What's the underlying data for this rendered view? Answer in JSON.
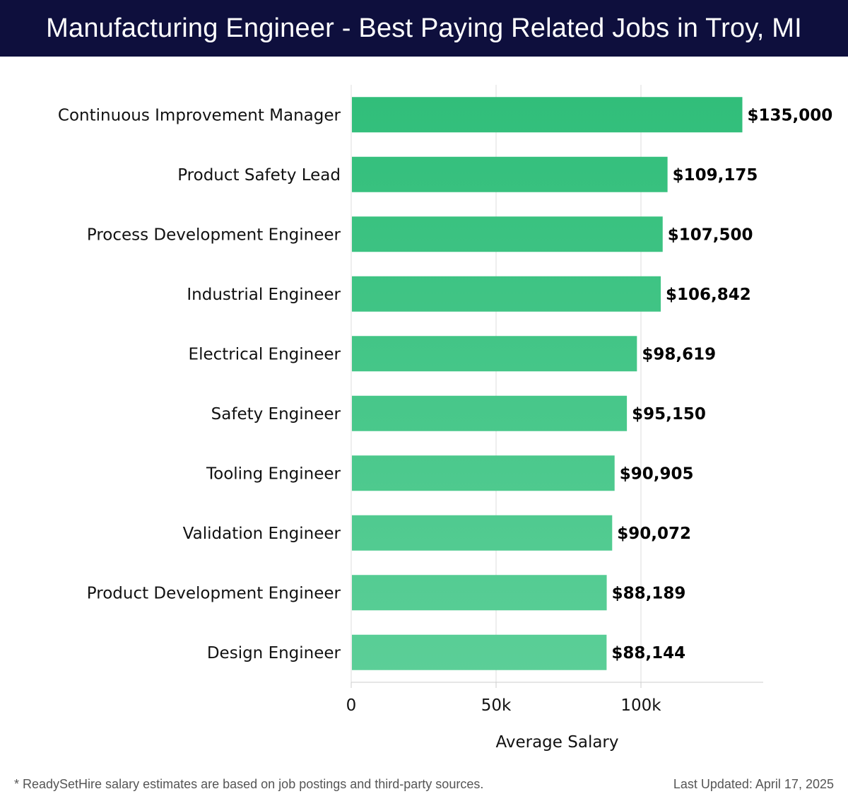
{
  "header": {
    "title": "Manufacturing Engineer - Best Paying Related Jobs in Troy, MI"
  },
  "colors": {
    "header_bg": "#0e0f3d",
    "bar_top": "#2ebd78",
    "bar_bottom": "#5ccf98",
    "grid": "#dddddd"
  },
  "chart_data": {
    "type": "bar",
    "orientation": "horizontal",
    "categories": [
      "Continuous Improvement Manager",
      "Product Safety Lead",
      "Process Development Engineer",
      "Industrial Engineer",
      "Electrical Engineer",
      "Safety Engineer",
      "Tooling Engineer",
      "Validation Engineer",
      "Product Development Engineer",
      "Design Engineer"
    ],
    "values": [
      135000,
      109175,
      107500,
      106842,
      98619,
      95150,
      90905,
      90072,
      88189,
      88144
    ],
    "value_labels": [
      "$135,000",
      "$109,175",
      "$107,500",
      "$106,842",
      "$98,619",
      "$95,150",
      "$90,905",
      "$90,072",
      "$88,189",
      "$88,144"
    ],
    "xticks": [
      0,
      50000,
      100000
    ],
    "xtick_labels": [
      "0",
      "50k",
      "100k"
    ],
    "xlabel": "Average Salary",
    "xlim": [
      0,
      142000
    ],
    "grid": true
  },
  "footer": {
    "note": "* ReadySetHire salary estimates are based on job postings and third-party sources.",
    "updated": "Last Updated: April 17, 2025"
  }
}
